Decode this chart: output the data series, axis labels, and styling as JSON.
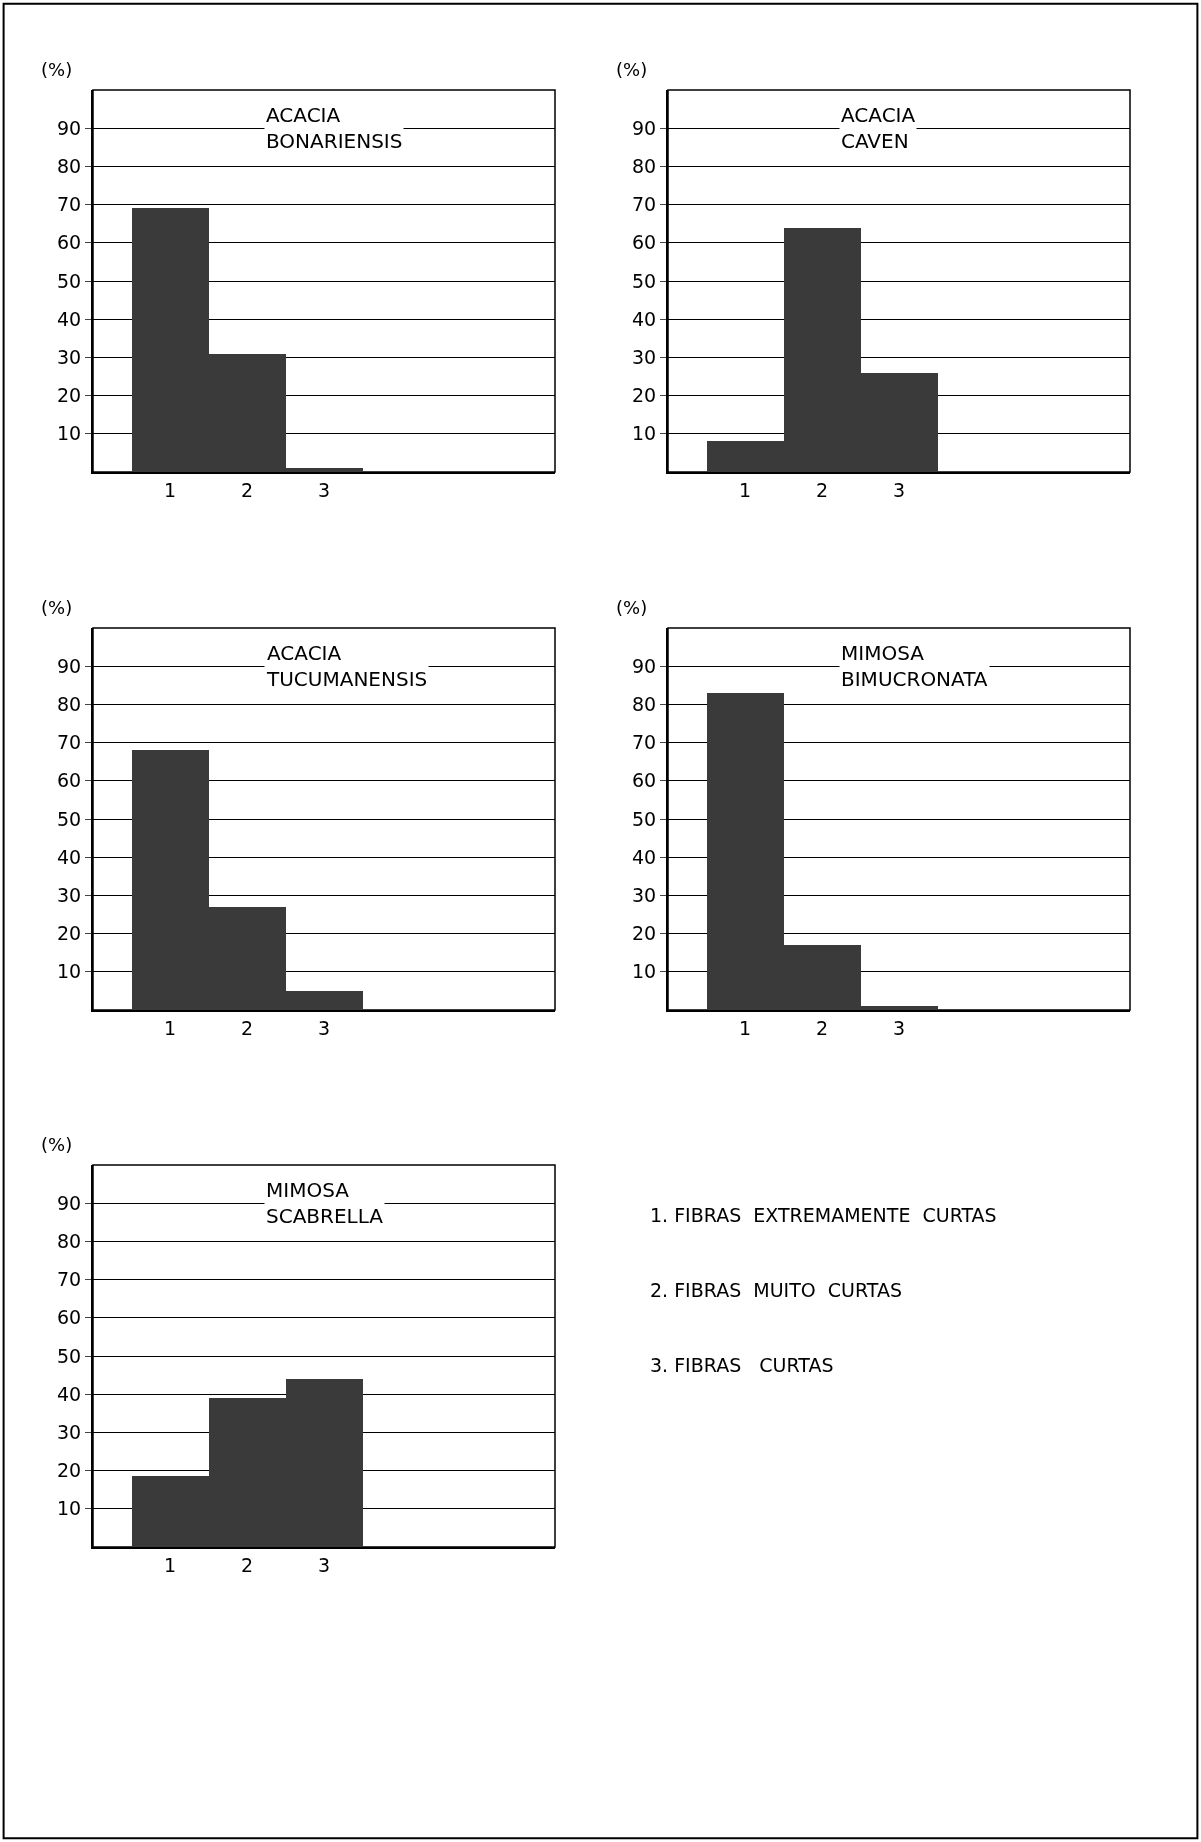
{
  "chart_data": [
    {
      "type": "bar",
      "title": "ACACIA\nBONARIENSIS",
      "ylabel": "(%)",
      "categories": [
        "1",
        "2",
        "3"
      ],
      "values": [
        69,
        31,
        1
      ],
      "color": "#3a3a3a",
      "ylim": [
        0,
        100
      ],
      "yticks": [
        10,
        20,
        30,
        40,
        50,
        60,
        70,
        80,
        90
      ],
      "grid": "y"
    },
    {
      "type": "bar",
      "title": "ACACIA\nCAVEN",
      "ylabel": "(%)",
      "categories": [
        "1",
        "2",
        "3"
      ],
      "values": [
        8,
        64,
        26
      ],
      "color": "#3a3a3a",
      "ylim": [
        0,
        100
      ],
      "yticks": [
        10,
        20,
        30,
        40,
        50,
        60,
        70,
        80,
        90
      ],
      "grid": "y"
    },
    {
      "type": "bar",
      "title": "ACACIA\nTUCUMANENSIS",
      "ylabel": "(%)",
      "categories": [
        "1",
        "2",
        "3"
      ],
      "values": [
        68,
        27,
        5
      ],
      "color": "#3a3a3a",
      "ylim": [
        0,
        100
      ],
      "yticks": [
        10,
        20,
        30,
        40,
        50,
        60,
        70,
        80,
        90
      ],
      "grid": "y"
    },
    {
      "type": "bar",
      "title": "MIMOSA\nBIMUCRONATA",
      "ylabel": "(%)",
      "categories": [
        "1",
        "2",
        "3"
      ],
      "values": [
        83,
        17,
        1
      ],
      "color": "#3a3a3a",
      "ylim": [
        0,
        100
      ],
      "yticks": [
        10,
        20,
        30,
        40,
        50,
        60,
        70,
        80,
        90
      ],
      "grid": "y"
    },
    {
      "type": "bar",
      "title": "MIMOSA\nSCABRELLA",
      "ylabel": "(%)",
      "categories": [
        "1",
        "2",
        "3"
      ],
      "values": [
        18.5,
        39,
        44
      ],
      "color": "#3a3a3a",
      "ylim": [
        0,
        100
      ],
      "yticks": [
        10,
        20,
        30,
        40,
        50,
        60,
        70,
        80,
        90
      ],
      "grid": "y"
    },
    {
      "type": "other",
      "annotations": [
        "1. FIBRAS  EXTREMAMENTE  CURTAS",
        "2. FIBRAS  MUITO  CURTAS",
        "3. FIBRAS   CURTAS"
      ]
    }
  ]
}
